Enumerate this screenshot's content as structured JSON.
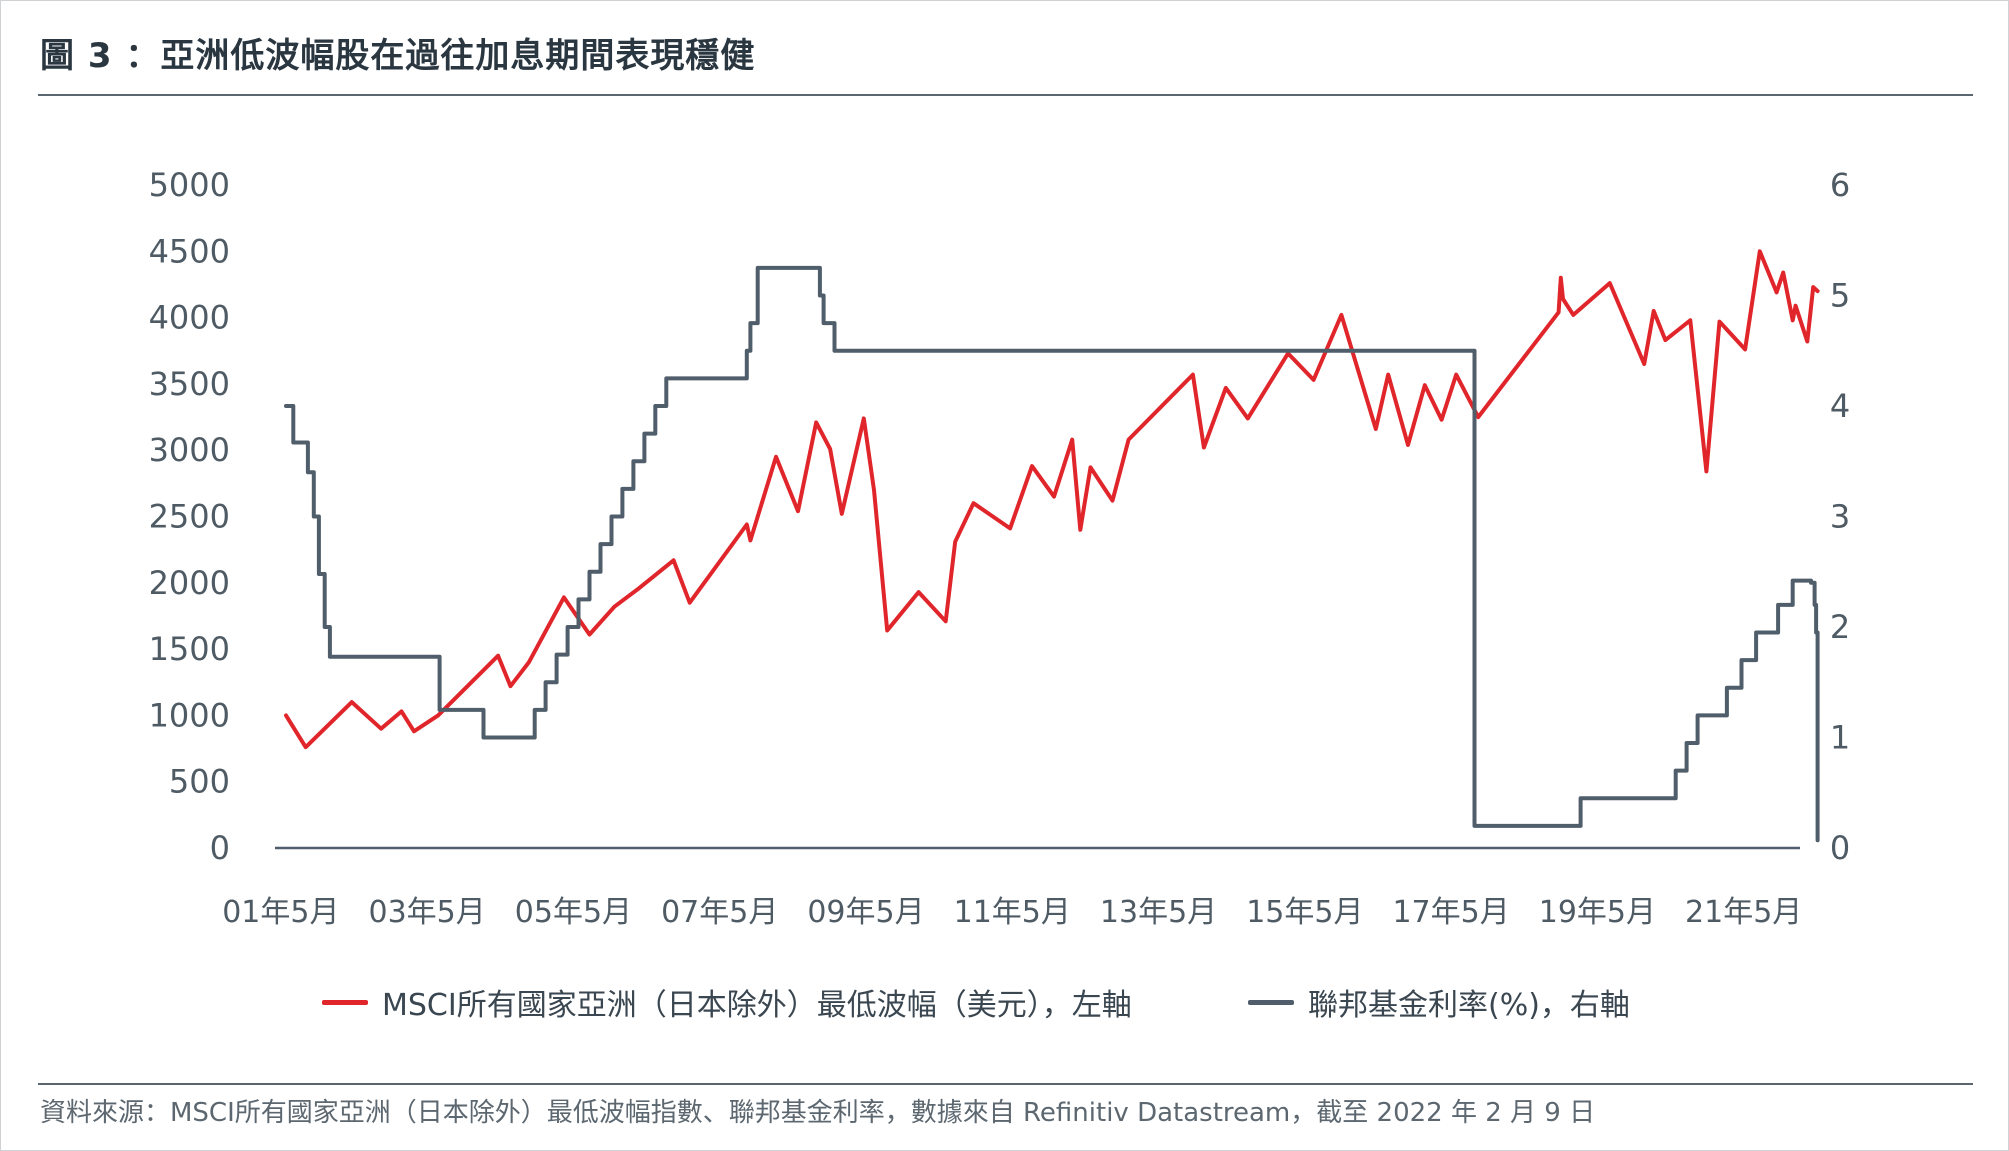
{
  "title": "圖 3 ：亞洲低波幅股在過往加息期間表現穩健",
  "source": "資料來源：MSCI所有國家亞洲（日本除外）最低波幅指數、聯邦基金利率，數據來自 Refinitiv Datastream，截至 2022 年 2 月 9 日",
  "chart_data": {
    "type": "line",
    "xlabel": "",
    "ylabel": "",
    "x_ticks": [
      "01年5月",
      "03年5月",
      "05年5月",
      "07年5月",
      "09年5月",
      "11年5月",
      "13年5月",
      "15年5月",
      "17年5月",
      "19年5月",
      "21年5月"
    ],
    "y_left": {
      "ticks": [
        "5000",
        "4500",
        "4000",
        "3500",
        "3000",
        "2500",
        "2000",
        "1500",
        "1000",
        "500",
        "0"
      ],
      "ylim": [
        0,
        5000
      ]
    },
    "y_right": {
      "ticks": [
        "6",
        "5",
        "4",
        "3",
        "2",
        "1",
        "0"
      ],
      "ylim": [
        0,
        6
      ]
    },
    "x_range": [
      2001.25,
      2022.1
    ],
    "series": [
      {
        "name": "MSCI所有國家亞洲（日本除外）最低波幅（美元），左軸",
        "axis": "left",
        "color": "#e0262b",
        "x": [
          2001.4,
          2001.67,
          2002.3,
          2002.7,
          2002.98,
          2003.15,
          2003.48,
          2004.3,
          2004.47,
          2004.72,
          2005.2,
          2005.55,
          2005.89,
          2006.23,
          2006.7,
          2006.92,
          2007.7,
          2007.75,
          2008.1,
          2008.4,
          2008.65,
          2008.84,
          2009.0,
          2009.3,
          2009.44,
          2009.62,
          2010.05,
          2010.42,
          2010.55,
          2010.8,
          2011.3,
          2011.6,
          2011.9,
          2012.15,
          2012.26,
          2012.4,
          2012.7,
          2012.92,
          2013.8,
          2013.95,
          2014.25,
          2014.55,
          2015.1,
          2015.45,
          2015.83,
          2016.3,
          2016.47,
          2016.74,
          2016.97,
          2017.2,
          2017.4,
          2017.7,
          2018.8,
          2018.83,
          2018.86,
          2019.0,
          2019.5,
          2019.97,
          2020.1,
          2020.26,
          2020.6,
          2020.82,
          2021.0,
          2021.35,
          2021.55,
          2021.78,
          2021.87,
          2022.0,
          2022.04,
          2022.2,
          2022.28,
          2022.34
        ],
        "y": [
          1000,
          760,
          1100,
          900,
          1030,
          880,
          1000,
          1450,
          1220,
          1400,
          1890,
          1610,
          1820,
          1960,
          2170,
          1850,
          2440,
          2320,
          2950,
          2540,
          3210,
          3010,
          2520,
          3240,
          2700,
          1640,
          1930,
          1710,
          2310,
          2600,
          2410,
          2880,
          2650,
          3080,
          2400,
          2870,
          2620,
          3080,
          3570,
          3020,
          3470,
          3240,
          3730,
          3530,
          4020,
          3160,
          3570,
          3040,
          3490,
          3230,
          3570,
          3250,
          4040,
          4300,
          4140,
          4020,
          4260,
          3650,
          4050,
          3830,
          3980,
          2840,
          3970,
          3760,
          4500,
          4190,
          4340,
          3980,
          4090,
          3820,
          4230,
          4200
        ]
      },
      {
        "name": "聯邦基金利率(%)，右軸",
        "axis": "right",
        "color": "#4f5e6a",
        "step": true,
        "x": [
          2001.4,
          2001.5,
          2001.7,
          2001.78,
          2001.85,
          2001.93,
          2002.0,
          2002.1,
          2003.5,
          2004.1,
          2004.65,
          2004.8,
          2004.95,
          2005.1,
          2005.25,
          2005.4,
          2005.55,
          2005.7,
          2005.85,
          2006.0,
          2006.15,
          2006.3,
          2006.45,
          2006.6,
          2007.7,
          2007.75,
          2007.85,
          2008.0,
          2008.1,
          2008.2,
          2008.35,
          2008.45,
          2008.7,
          2008.75,
          2008.9,
          2017.65,
          2018.0,
          2018.3,
          2018.5,
          2018.8,
          2019.1,
          2019.35,
          2019.6,
          2019.85,
          2020.4,
          2020.55,
          2020.7,
          2021.0,
          2021.1,
          2021.3,
          2021.5,
          2021.8,
          2022.0,
          2022.15,
          2022.25,
          2022.3,
          2022.32,
          2022.34,
          2022.34,
          2022.34,
          2022.34
        ],
        "y": [
          4.0,
          3.67,
          3.4,
          3.0,
          2.48,
          2.0,
          1.73,
          1.73,
          1.25,
          1.0,
          1.0,
          1.25,
          1.5,
          1.75,
          2.0,
          2.25,
          2.5,
          2.75,
          3.0,
          3.25,
          3.5,
          3.75,
          4.0,
          4.25,
          4.5,
          4.75,
          5.25,
          5.25,
          5.25,
          5.25,
          5.25,
          5.25,
          5.0,
          4.75,
          4.5,
          0.2,
          0.2,
          0.2,
          0.2,
          0.2,
          0.45,
          0.45,
          0.45,
          0.45,
          0.7,
          0.95,
          1.2,
          1.2,
          1.45,
          1.7,
          1.95,
          2.2,
          2.42,
          2.42,
          2.4,
          2.2,
          1.95,
          1.65,
          1.65,
          0.07,
          0.07
        ]
      }
    ],
    "legend_placement": "bottom"
  }
}
